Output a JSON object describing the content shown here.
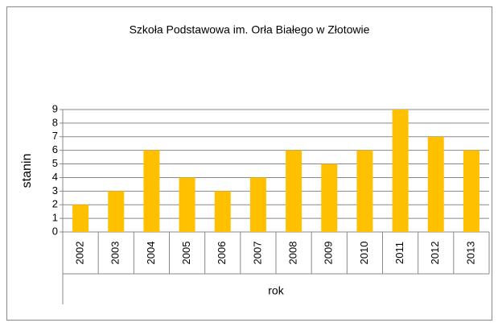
{
  "chart_data": {
    "type": "bar",
    "title": "Szkoła Podstawowa im. Orła Białego w Złotowie",
    "y_label": "stanin",
    "x_label": "rok",
    "categories": [
      "2002",
      "2003",
      "2004",
      "2005",
      "2006",
      "2007",
      "2008",
      "2009",
      "2010",
      "2011",
      "2012",
      "2013"
    ],
    "values": [
      2,
      3,
      6,
      4,
      3,
      4,
      6,
      5,
      6,
      9,
      7,
      6
    ],
    "color": "#ffc000",
    "ylim": [
      0,
      9
    ],
    "yticks": [
      0,
      1,
      2,
      3,
      4,
      5,
      6,
      7,
      8,
      9
    ],
    "grid": true
  }
}
